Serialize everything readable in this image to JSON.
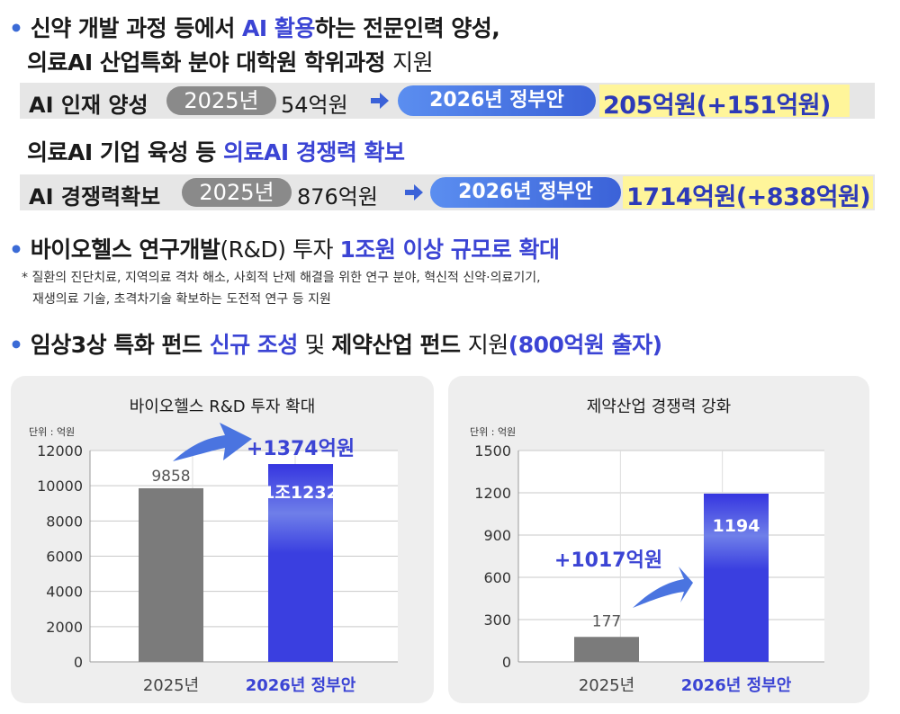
{
  "bullet": "•",
  "section1": {
    "line1_a": "신약 개발 과정 등에서 ",
    "line1_b": "AI 활용",
    "line1_c": "하는 전문인력 양성,",
    "line2_a": "의료AI 산업특화 분야 대학원 학위과정 ",
    "line2_b": "지원"
  },
  "row1": {
    "label": "AI 인재 양성",
    "year_pill": "2025년",
    "prev_amount": "54억원",
    "gov_pill": "2026년 정부안",
    "new_amount": "205억원(+151억원)"
  },
  "section2": {
    "line_a": "의료AI 기업 육성 등 ",
    "line_b": "의료AI 경쟁력 확보"
  },
  "row2": {
    "label": "AI 경쟁력확보",
    "year_pill": "2025년",
    "prev_amount": "876억원",
    "gov_pill": "2026년 정부안",
    "new_amount": "1714억원(+838억원)"
  },
  "section3": {
    "line_a": "바이오헬스 연구개발",
    "line_b": "(R&D) 투자 ",
    "line_c": "1조원 이상 규모로 확대",
    "note1": "* 질환의 진단치료, 지역의료 격차 해소, 사회적 난제 해결을 위한 연구 분야, 혁신적 신약·의료기기,",
    "note2": "재생의료 기술, 초격차기술 확보하는 도전적 연구 등 지원"
  },
  "section4": {
    "line_a": "임상3상 특화 펀드 ",
    "line_b": "신규 조성",
    "line_c": " 및 ",
    "line_d": "제약산업 펀드 ",
    "line_e": "지원",
    "line_f": "(800억원 출자)"
  },
  "colors": {
    "accent_blue": "#3b44d4",
    "bar_gray": "#7b7b7b",
    "bar_blue": "#3a3fe0",
    "highlight": "#fff59a"
  },
  "chart_data": [
    {
      "type": "bar",
      "title": "바이오헬스 R&D 투자 확대",
      "unit_label": "단위 : 억원",
      "categories": [
        "2025년",
        "2026년 정부안"
      ],
      "values": [
        9858,
        11232
      ],
      "data_labels": [
        "9858",
        "1조1232"
      ],
      "increase_label": "+1374억원",
      "ylim": [
        0,
        12000
      ],
      "yticks": [
        "0",
        "2000",
        "4000",
        "6000",
        "8000",
        "10000",
        "12000"
      ],
      "ytick_values": [
        0,
        2000,
        4000,
        6000,
        8000,
        10000,
        12000
      ],
      "grid": true
    },
    {
      "type": "bar",
      "title": "제약산업 경쟁력 강화",
      "unit_label": "단위 : 억원",
      "categories": [
        "2025년",
        "2026년 정부안"
      ],
      "values": [
        177,
        1194
      ],
      "data_labels": [
        "177",
        "1194"
      ],
      "increase_label": "+1017억원",
      "ylim": [
        0,
        1500
      ],
      "yticks": [
        "0",
        "300",
        "600",
        "900",
        "1200",
        "1500"
      ],
      "ytick_values": [
        0,
        300,
        600,
        900,
        1200,
        1500
      ],
      "grid": true
    }
  ]
}
